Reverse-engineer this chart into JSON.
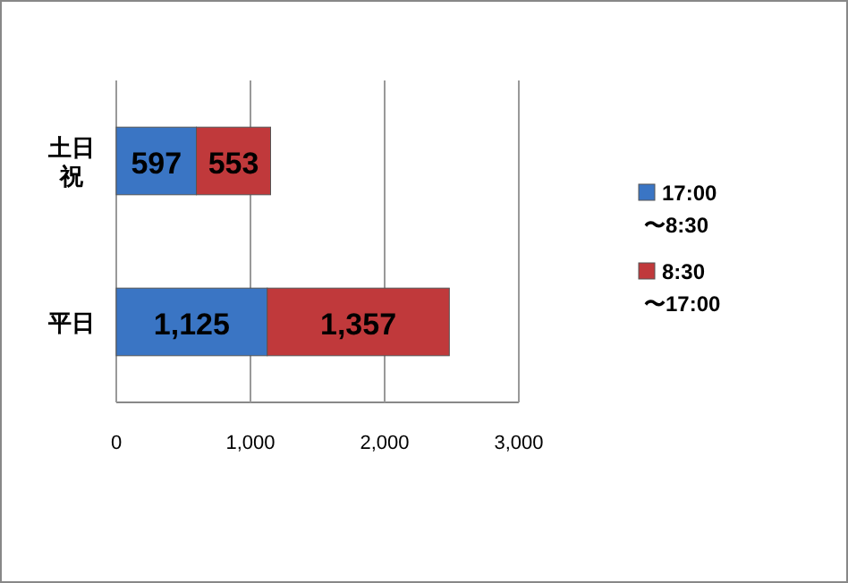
{
  "chart_data": {
    "type": "bar",
    "orientation": "horizontal",
    "stacked": true,
    "categories": [
      "土日祝",
      "平日"
    ],
    "series": [
      {
        "name": "17:00 〜8:30",
        "color": "#3a75c4",
        "values": [
          597,
          1125
        ],
        "value_labels": [
          "597",
          "1,125"
        ]
      },
      {
        "name": "8:30 〜17:00",
        "color": "#c0393b",
        "values": [
          553,
          1357
        ],
        "value_labels": [
          "553",
          "1,357"
        ]
      }
    ],
    "xlim": [
      0,
      3000
    ],
    "xticks": [
      0,
      {
        "value": 1000,
        "label": "1,000"
      },
      {
        "value": 2000,
        "label": "2,000"
      },
      {
        "value": 3000,
        "label": "3,000"
      }
    ],
    "grid": "x",
    "legend": "right"
  }
}
